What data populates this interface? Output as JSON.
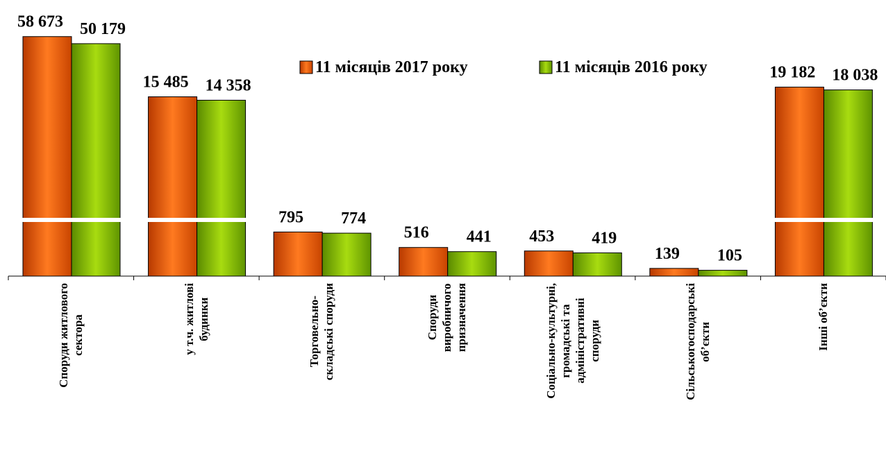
{
  "chart_data": {
    "type": "bar",
    "categories": [
      "Споруди житлового\nсектора",
      "у т.ч. житлові\nбудинки",
      "Торговельно-\nскладські споруди",
      "Споруди\nвиробничого\nпризначення",
      "Соціально-культурні,\nгромадські та\nадміністративні\nспоруди",
      "Сільськогосподарські\nоб’єкти",
      "Інші об’єкти"
    ],
    "series": [
      {
        "name": "11 місяців 2017 року",
        "color": "#f06010",
        "values": [
          58673,
          15485,
          795,
          516,
          453,
          139,
          19182
        ],
        "value_labels": [
          "58 673",
          "15 485",
          "795",
          "516",
          "453",
          "139",
          "19 182"
        ]
      },
      {
        "name": "11 місяців 2016 року",
        "color": "#8cc400",
        "values": [
          50179,
          14358,
          774,
          441,
          419,
          105,
          18038
        ],
        "value_labels": [
          "50 179",
          "14 358",
          "774",
          "441",
          "419",
          "105",
          "18 038"
        ]
      }
    ]
  }
}
